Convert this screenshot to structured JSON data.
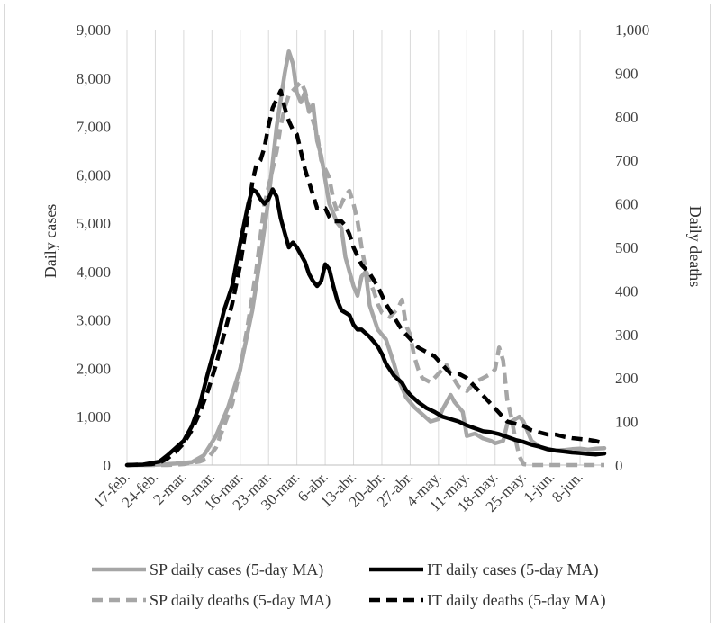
{
  "chart_data": {
    "type": "line",
    "title": "",
    "ylabel_left": "Daily cases",
    "ylabel_right": "Daily deaths",
    "ylim_left": [
      0,
      9000
    ],
    "ylim_right": [
      0,
      1000
    ],
    "yticks_left": [
      "0",
      "1,000",
      "2,000",
      "3,000",
      "4,000",
      "5,000",
      "6,000",
      "7,000",
      "8,000",
      "9,000"
    ],
    "yticks_right": [
      "0",
      "100",
      "200",
      "300",
      "400",
      "500",
      "600",
      "700",
      "800",
      "900",
      "1,000"
    ],
    "x_start_day": 0,
    "x_end_day": 118,
    "xticks": [
      {
        "day": 0,
        "label": "17-feb."
      },
      {
        "day": 7,
        "label": "24-feb."
      },
      {
        "day": 14,
        "label": "2-mar."
      },
      {
        "day": 21,
        "label": "9-mar."
      },
      {
        "day": 28,
        "label": "16-mar."
      },
      {
        "day": 35,
        "label": "23-mar."
      },
      {
        "day": 42,
        "label": "30-mar."
      },
      {
        "day": 49,
        "label": "6-abr."
      },
      {
        "day": 56,
        "label": "13-abr."
      },
      {
        "day": 63,
        "label": "20-abr."
      },
      {
        "day": 70,
        "label": "27-abr."
      },
      {
        "day": 77,
        "label": "4-may."
      },
      {
        "day": 84,
        "label": "11-may."
      },
      {
        "day": 91,
        "label": "18-may."
      },
      {
        "day": 98,
        "label": "25-may."
      },
      {
        "day": 105,
        "label": "1-jun."
      },
      {
        "day": 112,
        "label": "8-jun."
      }
    ],
    "series": [
      {
        "name": "SP daily cases (5-day MA)",
        "axis": "left",
        "color": "#a6a6a6",
        "dash": "solid",
        "points": [
          [
            0,
            0
          ],
          [
            4,
            0
          ],
          [
            8,
            10
          ],
          [
            12,
            30
          ],
          [
            16,
            60
          ],
          [
            19,
            200
          ],
          [
            22,
            600
          ],
          [
            25,
            1200
          ],
          [
            28,
            2000
          ],
          [
            31,
            3200
          ],
          [
            33,
            4300
          ],
          [
            35,
            5500
          ],
          [
            37,
            7000
          ],
          [
            39,
            8100
          ],
          [
            40,
            8550
          ],
          [
            41,
            8300
          ],
          [
            42,
            7700
          ],
          [
            43,
            7500
          ],
          [
            44,
            7700
          ],
          [
            45,
            7300
          ],
          [
            46,
            7450
          ],
          [
            47,
            6700
          ],
          [
            48,
            6400
          ],
          [
            50,
            5400
          ],
          [
            51,
            5200
          ],
          [
            52,
            5000
          ],
          [
            53,
            4900
          ],
          [
            54,
            4300
          ],
          [
            55,
            4000
          ],
          [
            56,
            3700
          ],
          [
            57,
            3500
          ],
          [
            58,
            3900
          ],
          [
            59,
            4000
          ],
          [
            60,
            3300
          ],
          [
            62,
            2800
          ],
          [
            64,
            2600
          ],
          [
            66,
            2100
          ],
          [
            67,
            1800
          ],
          [
            69,
            1400
          ],
          [
            71,
            1200
          ],
          [
            73,
            1050
          ],
          [
            75,
            900
          ],
          [
            77,
            950
          ],
          [
            78,
            1150
          ],
          [
            80,
            1450
          ],
          [
            81,
            1300
          ],
          [
            83,
            1100
          ],
          [
            84,
            600
          ],
          [
            86,
            650
          ],
          [
            88,
            550
          ],
          [
            90,
            500
          ],
          [
            91,
            450
          ],
          [
            93,
            500
          ],
          [
            94,
            850
          ],
          [
            95,
            900
          ],
          [
            97,
            1000
          ],
          [
            98,
            900
          ],
          [
            100,
            500
          ],
          [
            102,
            380
          ],
          [
            104,
            320
          ],
          [
            106,
            300
          ],
          [
            108,
            310
          ],
          [
            110,
            330
          ],
          [
            112,
            340
          ],
          [
            114,
            320
          ],
          [
            116,
            340
          ],
          [
            118,
            350
          ]
        ]
      },
      {
        "name": "IT daily cases (5-day MA)",
        "axis": "left",
        "color": "#000000",
        "dash": "solid",
        "points": [
          [
            0,
            0
          ],
          [
            4,
            10
          ],
          [
            6,
            40
          ],
          [
            8,
            70
          ],
          [
            10,
            200
          ],
          [
            12,
            350
          ],
          [
            14,
            500
          ],
          [
            16,
            800
          ],
          [
            18,
            1250
          ],
          [
            20,
            1900
          ],
          [
            22,
            2500
          ],
          [
            24,
            3200
          ],
          [
            26,
            3700
          ],
          [
            28,
            4600
          ],
          [
            30,
            5400
          ],
          [
            31,
            5700
          ],
          [
            32,
            5650
          ],
          [
            33,
            5500
          ],
          [
            34,
            5400
          ],
          [
            35,
            5500
          ],
          [
            36,
            5700
          ],
          [
            37,
            5550
          ],
          [
            38,
            5100
          ],
          [
            39,
            4800
          ],
          [
            40,
            4500
          ],
          [
            41,
            4600
          ],
          [
            42,
            4500
          ],
          [
            44,
            4200
          ],
          [
            45,
            3950
          ],
          [
            46,
            3800
          ],
          [
            47,
            3700
          ],
          [
            48,
            3800
          ],
          [
            49,
            4150
          ],
          [
            50,
            4050
          ],
          [
            51,
            3700
          ],
          [
            52,
            3400
          ],
          [
            53,
            3200
          ],
          [
            54,
            3150
          ],
          [
            55,
            3100
          ],
          [
            56,
            2900
          ],
          [
            57,
            2800
          ],
          [
            58,
            2800
          ],
          [
            60,
            2650
          ],
          [
            62,
            2450
          ],
          [
            63,
            2300
          ],
          [
            64,
            2100
          ],
          [
            66,
            1850
          ],
          [
            68,
            1700
          ],
          [
            69,
            1550
          ],
          [
            70,
            1450
          ],
          [
            72,
            1300
          ],
          [
            74,
            1180
          ],
          [
            76,
            1100
          ],
          [
            78,
            1000
          ],
          [
            80,
            950
          ],
          [
            82,
            900
          ],
          [
            84,
            820
          ],
          [
            86,
            760
          ],
          [
            88,
            700
          ],
          [
            90,
            680
          ],
          [
            92,
            640
          ],
          [
            94,
            580
          ],
          [
            96,
            520
          ],
          [
            98,
            480
          ],
          [
            100,
            420
          ],
          [
            102,
            380
          ],
          [
            104,
            330
          ],
          [
            106,
            300
          ],
          [
            108,
            280
          ],
          [
            110,
            260
          ],
          [
            112,
            250
          ],
          [
            114,
            230
          ],
          [
            116,
            220
          ],
          [
            118,
            240
          ]
        ]
      },
      {
        "name": "SP daily deaths (5-day MA)",
        "axis": "right",
        "color": "#a6a6a6",
        "dash": "dashed",
        "points": [
          [
            0,
            0
          ],
          [
            10,
            0
          ],
          [
            14,
            2
          ],
          [
            16,
            5
          ],
          [
            18,
            8
          ],
          [
            20,
            15
          ],
          [
            22,
            40
          ],
          [
            24,
            90
          ],
          [
            26,
            140
          ],
          [
            28,
            220
          ],
          [
            30,
            330
          ],
          [
            32,
            450
          ],
          [
            34,
            600
          ],
          [
            36,
            680
          ],
          [
            37,
            720
          ],
          [
            38,
            780
          ],
          [
            39,
            820
          ],
          [
            40,
            850
          ],
          [
            41,
            860
          ],
          [
            42,
            870
          ],
          [
            43,
            880
          ],
          [
            44,
            860
          ],
          [
            45,
            820
          ],
          [
            46,
            790
          ],
          [
            47,
            760
          ],
          [
            48,
            700
          ],
          [
            49,
            680
          ],
          [
            50,
            660
          ],
          [
            51,
            610
          ],
          [
            52,
            580
          ],
          [
            53,
            600
          ],
          [
            54,
            620
          ],
          [
            55,
            630
          ],
          [
            56,
            600
          ],
          [
            57,
            560
          ],
          [
            58,
            500
          ],
          [
            59,
            450
          ],
          [
            60,
            420
          ],
          [
            61,
            400
          ],
          [
            62,
            370
          ],
          [
            63,
            350
          ],
          [
            65,
            340
          ],
          [
            67,
            360
          ],
          [
            68,
            380
          ],
          [
            69,
            320
          ],
          [
            70,
            300
          ],
          [
            71,
            250
          ],
          [
            72,
            220
          ],
          [
            73,
            200
          ],
          [
            75,
            190
          ],
          [
            77,
            210
          ],
          [
            79,
            230
          ],
          [
            80,
            210
          ],
          [
            82,
            180
          ],
          [
            84,
            170
          ],
          [
            86,
            190
          ],
          [
            88,
            200
          ],
          [
            90,
            210
          ],
          [
            91,
            220
          ],
          [
            92,
            270
          ],
          [
            93,
            240
          ],
          [
            94,
            150
          ],
          [
            95,
            110
          ],
          [
            96,
            60
          ],
          [
            97,
            20
          ],
          [
            98,
            2
          ],
          [
            100,
            0
          ],
          [
            104,
            0
          ],
          [
            110,
            0
          ],
          [
            118,
            0
          ]
        ]
      },
      {
        "name": "IT daily deaths (5-day MA)",
        "axis": "right",
        "color": "#000000",
        "dash": "dashed",
        "points": [
          [
            0,
            0
          ],
          [
            6,
            2
          ],
          [
            8,
            5
          ],
          [
            10,
            15
          ],
          [
            12,
            30
          ],
          [
            14,
            50
          ],
          [
            16,
            80
          ],
          [
            18,
            120
          ],
          [
            20,
            170
          ],
          [
            22,
            230
          ],
          [
            24,
            300
          ],
          [
            26,
            370
          ],
          [
            28,
            460
          ],
          [
            30,
            580
          ],
          [
            31,
            650
          ],
          [
            32,
            690
          ],
          [
            33,
            700
          ],
          [
            34,
            730
          ],
          [
            35,
            780
          ],
          [
            36,
            820
          ],
          [
            37,
            840
          ],
          [
            38,
            860
          ],
          [
            39,
            820
          ],
          [
            40,
            790
          ],
          [
            41,
            770
          ],
          [
            42,
            760
          ],
          [
            43,
            720
          ],
          [
            44,
            680
          ],
          [
            45,
            650
          ],
          [
            46,
            620
          ],
          [
            47,
            590
          ],
          [
            48,
            590
          ],
          [
            49,
            590
          ],
          [
            50,
            570
          ],
          [
            51,
            560
          ],
          [
            52,
            560
          ],
          [
            53,
            560
          ],
          [
            54,
            550
          ],
          [
            55,
            530
          ],
          [
            56,
            500
          ],
          [
            58,
            460
          ],
          [
            60,
            440
          ],
          [
            62,
            410
          ],
          [
            64,
            370
          ],
          [
            66,
            340
          ],
          [
            68,
            310
          ],
          [
            70,
            290
          ],
          [
            72,
            270
          ],
          [
            74,
            260
          ],
          [
            76,
            250
          ],
          [
            78,
            230
          ],
          [
            80,
            210
          ],
          [
            82,
            210
          ],
          [
            84,
            200
          ],
          [
            86,
            180
          ],
          [
            88,
            160
          ],
          [
            90,
            140
          ],
          [
            92,
            120
          ],
          [
            94,
            100
          ],
          [
            96,
            95
          ],
          [
            98,
            90
          ],
          [
            100,
            80
          ],
          [
            102,
            75
          ],
          [
            104,
            70
          ],
          [
            106,
            70
          ],
          [
            108,
            65
          ],
          [
            110,
            62
          ],
          [
            112,
            60
          ],
          [
            114,
            58
          ],
          [
            116,
            55
          ],
          [
            118,
            50
          ]
        ]
      }
    ]
  }
}
